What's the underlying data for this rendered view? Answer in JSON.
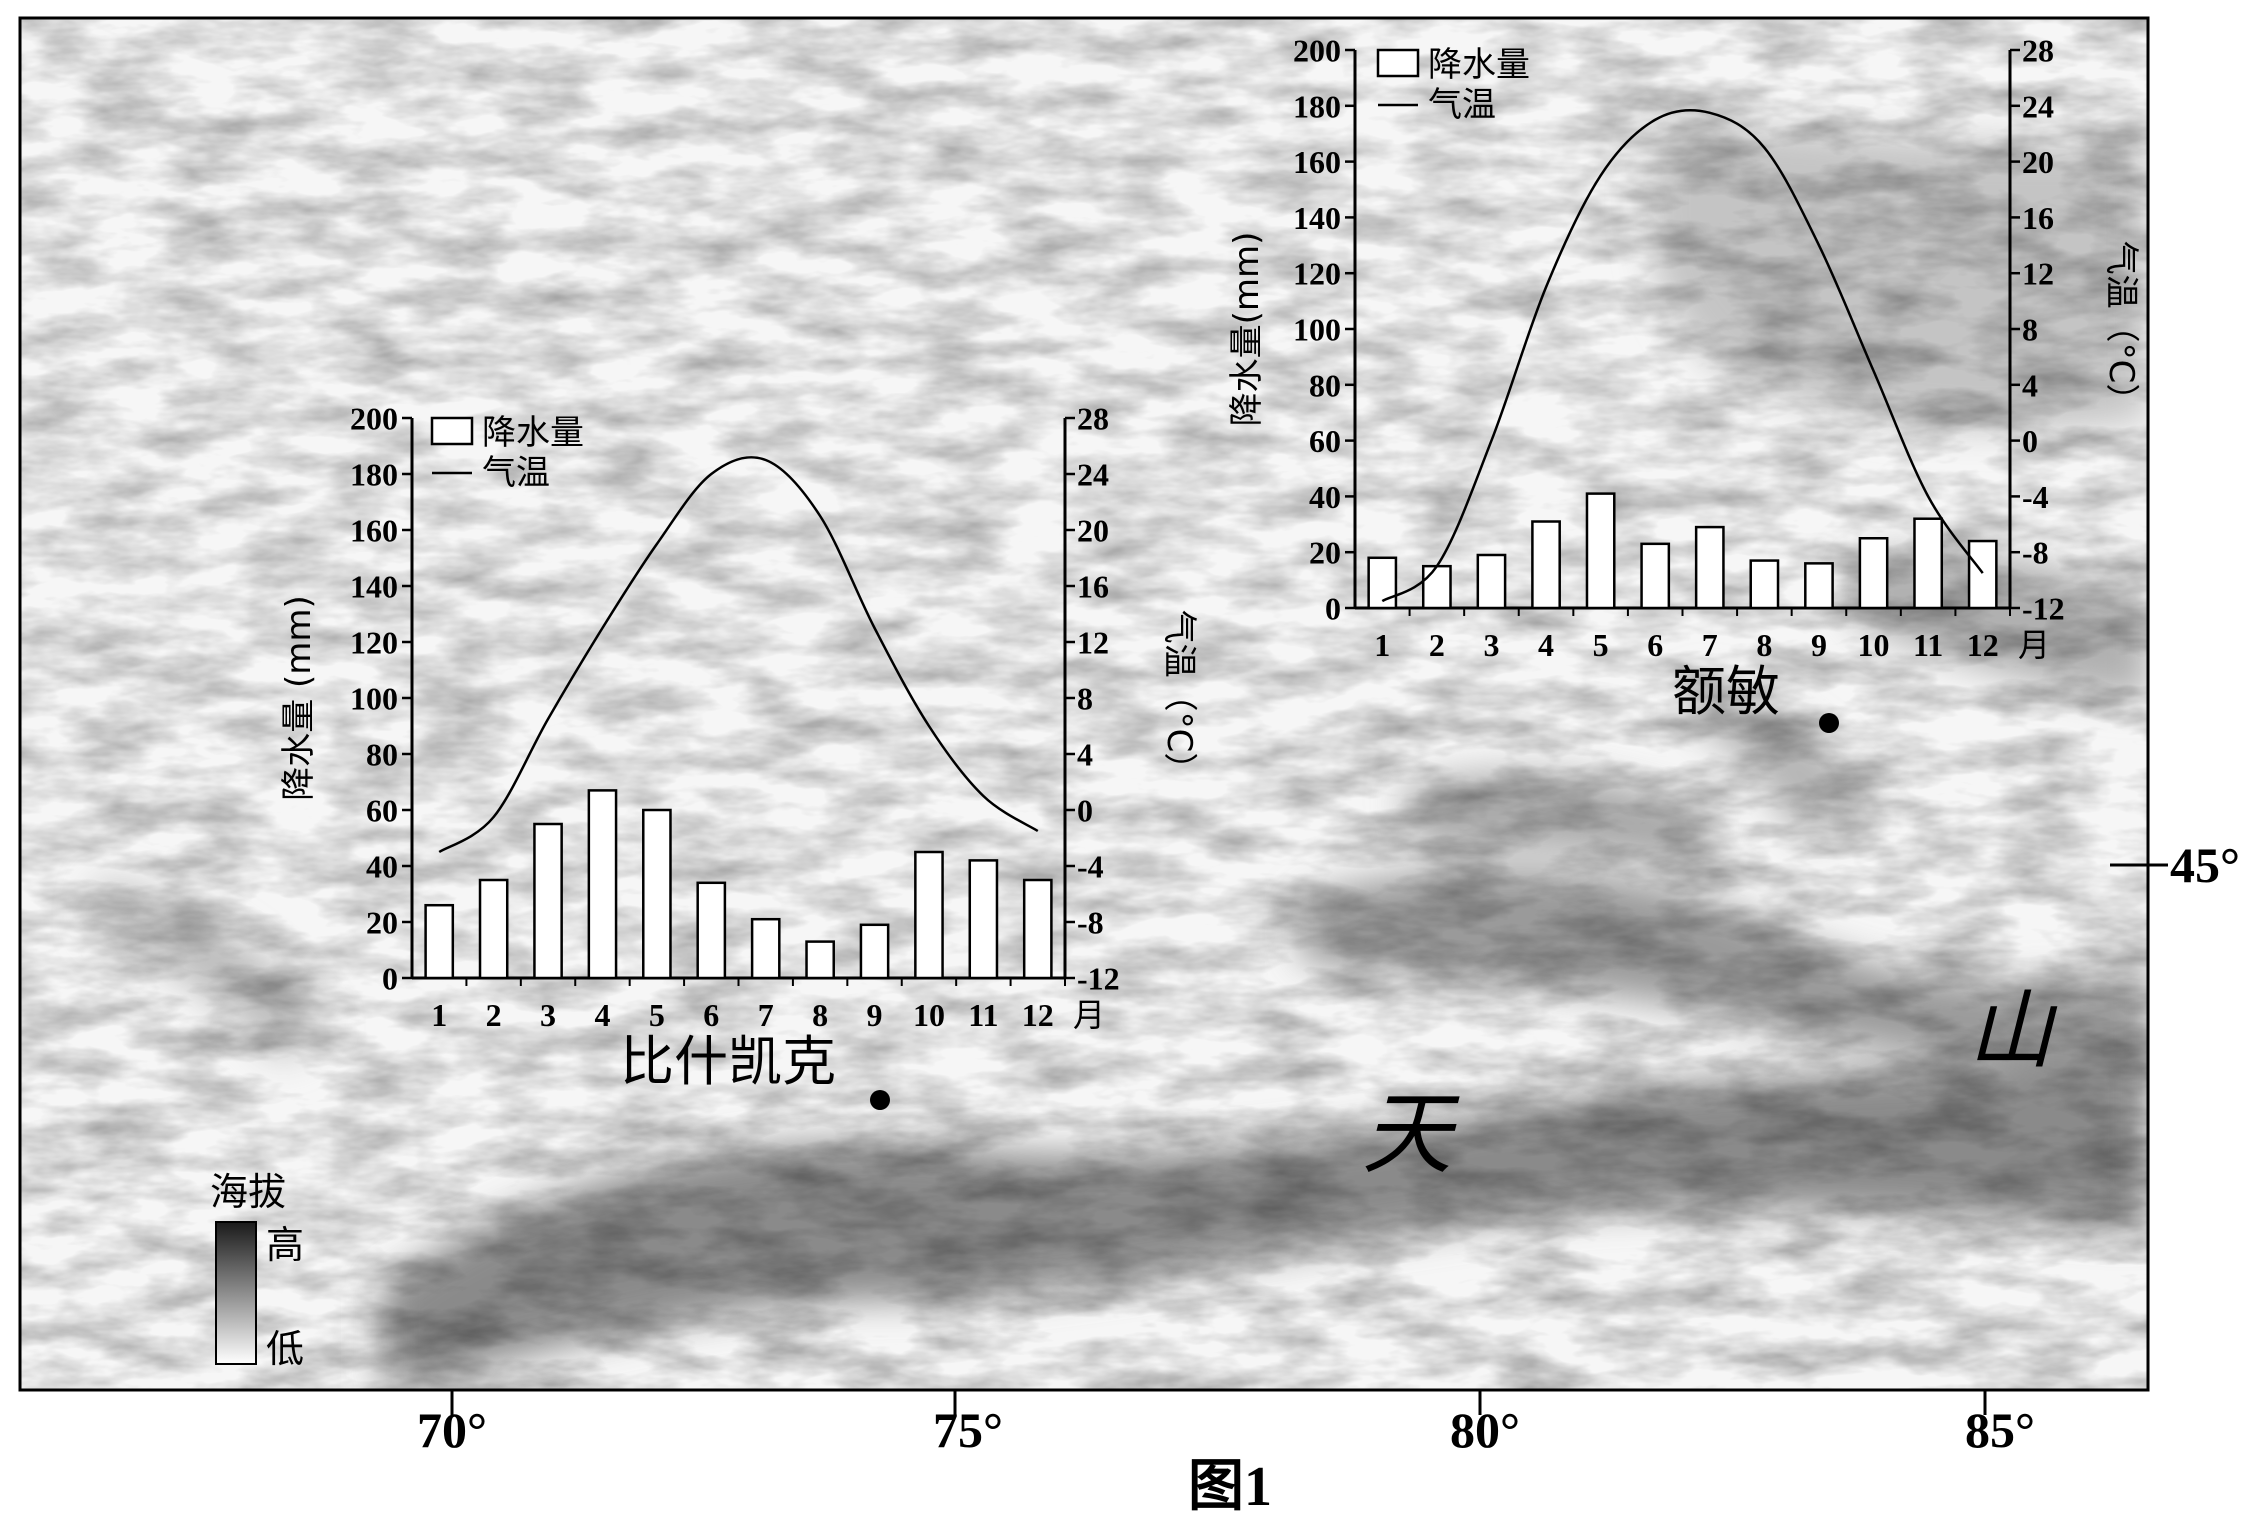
{
  "map": {
    "longitude_labels": [
      "70°",
      "75°",
      "80°",
      "85°"
    ],
    "latitude_label": "45°",
    "mountain_label_chars": [
      "天",
      "山"
    ],
    "figure_caption": "图1"
  },
  "legend": {
    "title": "海拔",
    "high": "高",
    "low": "低"
  },
  "stations": [
    {
      "name": "比什凯克",
      "chart_data": {
        "type": "bar",
        "categories": [
          "1",
          "2",
          "3",
          "4",
          "5",
          "6",
          "7",
          "8",
          "9",
          "10",
          "11",
          "12"
        ],
        "month_unit": "月",
        "series": [
          {
            "name": "降水量",
            "type": "bar",
            "axis": "left",
            "values": [
              26,
              35,
              55,
              67,
              60,
              34,
              21,
              13,
              19,
              45,
              42,
              35
            ]
          },
          {
            "name": "气温",
            "type": "line",
            "axis": "right",
            "values": [
              -3,
              -0.5,
              6.5,
              13,
              19,
              24,
              25,
              21,
              13,
              6,
              1,
              -1.5
            ]
          }
        ],
        "ylabel": "降水量 (mm)",
        "y2label": "气温（°C）",
        "ylim": [
          0,
          200
        ],
        "y_ticks": [
          "0",
          "20",
          "40",
          "60",
          "80",
          "100",
          "120",
          "140",
          "160",
          "180",
          "200"
        ],
        "y2lim": [
          -12,
          28
        ],
        "y2_ticks": [
          "-12",
          "-8",
          "-4",
          "0",
          "4",
          "8",
          "12",
          "16",
          "20",
          "24",
          "28"
        ],
        "legend_labels": [
          "降水量",
          "气温"
        ]
      }
    },
    {
      "name": "额敏",
      "chart_data": {
        "type": "bar",
        "categories": [
          "1",
          "2",
          "3",
          "4",
          "5",
          "6",
          "7",
          "8",
          "9",
          "10",
          "11",
          "12"
        ],
        "month_unit": "月",
        "series": [
          {
            "name": "降水量",
            "type": "bar",
            "axis": "left",
            "values": [
              18,
              15,
              19,
              31,
              41,
              23,
              29,
              17,
              16,
              25,
              32,
              24
            ]
          },
          {
            "name": "气温",
            "type": "line",
            "axis": "right",
            "values": [
              -11.5,
              -9,
              0,
              11,
              19,
              23,
              23.5,
              21,
              14,
              5,
              -4,
              -9.5
            ]
          }
        ],
        "ylabel": "降水量(mm)",
        "y2label": "气温（°C）",
        "ylim": [
          0,
          200
        ],
        "y_ticks": [
          "0",
          "20",
          "40",
          "60",
          "80",
          "100",
          "120",
          "140",
          "160",
          "180",
          "200"
        ],
        "y2lim": [
          -12,
          28
        ],
        "y2_ticks": [
          "-12",
          "-8",
          "-4",
          "0",
          "4",
          "8",
          "12",
          "16",
          "20",
          "24",
          "28"
        ],
        "legend_labels": [
          "降水量",
          "气温"
        ]
      }
    }
  ]
}
